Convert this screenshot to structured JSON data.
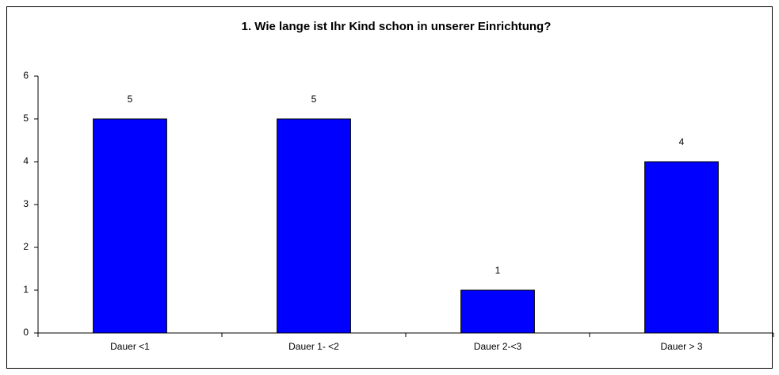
{
  "chart_data": {
    "type": "bar",
    "title": "1. Wie lange ist Ihr Kind schon in unserer Einrichtung?",
    "categories": [
      "Dauer <1",
      "Dauer 1- <2",
      "Dauer 2-<3",
      "Dauer > 3"
    ],
    "values": [
      5,
      5,
      1,
      4
    ],
    "color": "#0000ff",
    "ylim": [
      0,
      6
    ],
    "yticks": [
      0,
      1,
      2,
      3,
      4,
      5,
      6
    ],
    "grid": false
  }
}
